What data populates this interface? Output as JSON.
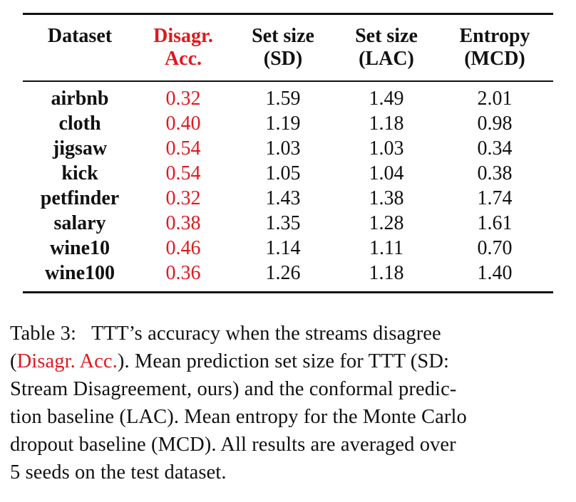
{
  "table": {
    "headers": [
      {
        "line1": "Dataset",
        "line2": ""
      },
      {
        "line1": "Disagr.",
        "line2": "Acc."
      },
      {
        "line1": "Set size",
        "line2": "(SD)"
      },
      {
        "line1": "Set size",
        "line2": "(LAC)"
      },
      {
        "line1": "Entropy",
        "line2": "(MCD)"
      }
    ],
    "rows": [
      {
        "dataset": "airbnb",
        "disagr_acc": "0.32",
        "set_size_sd": "1.59",
        "set_size_lac": "1.49",
        "entropy_mcd": "2.01"
      },
      {
        "dataset": "cloth",
        "disagr_acc": "0.40",
        "set_size_sd": "1.19",
        "set_size_lac": "1.18",
        "entropy_mcd": "0.98"
      },
      {
        "dataset": "jigsaw",
        "disagr_acc": "0.54",
        "set_size_sd": "1.03",
        "set_size_lac": "1.03",
        "entropy_mcd": "0.34"
      },
      {
        "dataset": "kick",
        "disagr_acc": "0.54",
        "set_size_sd": "1.05",
        "set_size_lac": "1.04",
        "entropy_mcd": "0.38"
      },
      {
        "dataset": "petfinder",
        "disagr_acc": "0.32",
        "set_size_sd": "1.43",
        "set_size_lac": "1.38",
        "entropy_mcd": "1.74"
      },
      {
        "dataset": "salary",
        "disagr_acc": "0.38",
        "set_size_sd": "1.35",
        "set_size_lac": "1.28",
        "entropy_mcd": "1.61"
      },
      {
        "dataset": "wine10",
        "disagr_acc": "0.46",
        "set_size_sd": "1.14",
        "set_size_lac": "1.11",
        "entropy_mcd": "0.70"
      },
      {
        "dataset": "wine100",
        "disagr_acc": "0.36",
        "set_size_sd": "1.26",
        "set_size_lac": "1.18",
        "entropy_mcd": "1.40"
      }
    ]
  },
  "caption": {
    "line1": "Table 3:   TTT’s accuracy when the streams disagree",
    "line2_pre": "(",
    "line2_red": "Disagr. Acc.",
    "line2_post": "). Mean prediction set size for TTT (SD:",
    "line3": "Stream Disagreement, ours) and the conformal predic-",
    "line4": "tion baseline (LAC). Mean entropy for the Monte Carlo",
    "line5": "dropout baseline (MCD). All results are averaged over",
    "line6": "5 seeds on the test dataset."
  },
  "colors": {
    "accent_red": "#e0191e",
    "text": "#111111"
  }
}
